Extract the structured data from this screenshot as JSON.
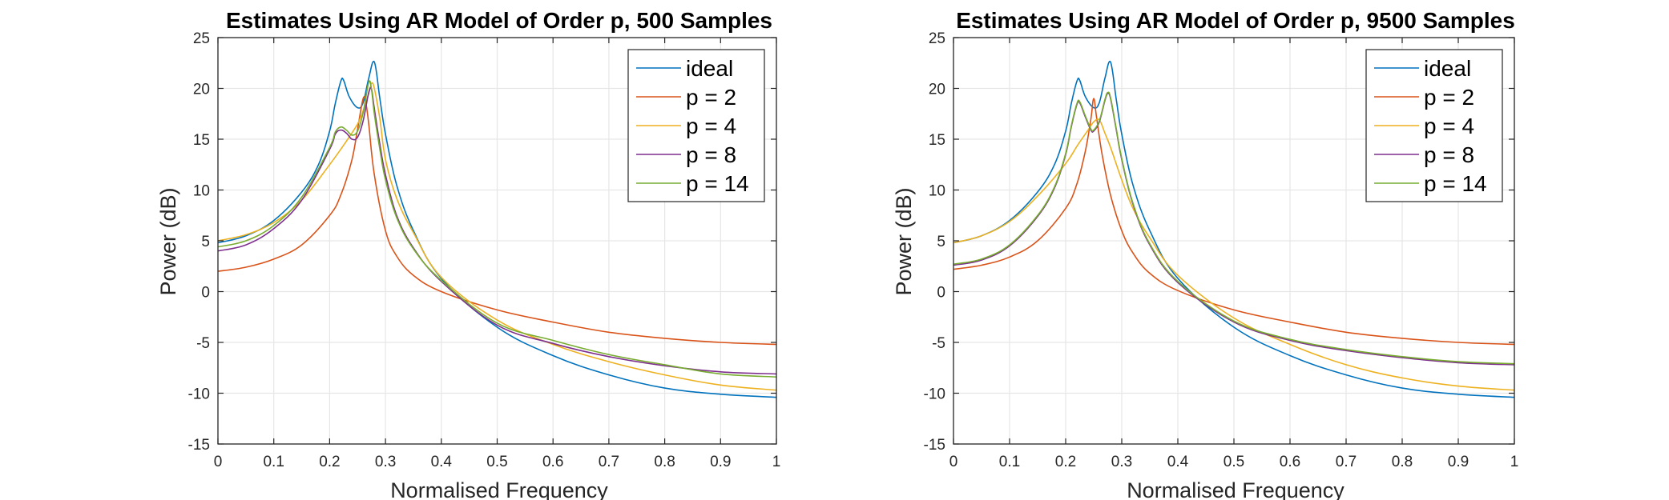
{
  "chart_data": [
    {
      "type": "line",
      "title": "Estimates Using AR Model of Order p, 500 Samples",
      "xlabel": "Normalised Frequency",
      "ylabel": "Power (dB)",
      "xlim": [
        0,
        1
      ],
      "ylim": [
        -15,
        25
      ],
      "xticks": [
        0,
        0.1,
        0.2,
        0.3,
        0.4,
        0.5,
        0.6,
        0.7,
        0.8,
        0.9,
        1
      ],
      "yticks": [
        -15,
        -10,
        -5,
        0,
        5,
        10,
        15,
        20,
        25
      ],
      "xtick_labels": [
        "0",
        "0.1",
        "0.2",
        "0.3",
        "0.4",
        "0.5",
        "0.6",
        "0.7",
        "0.8",
        "0.9",
        "1"
      ],
      "ytick_labels": [
        "-15",
        "-10",
        "-5",
        "0",
        "5",
        "10",
        "15",
        "20",
        "25"
      ],
      "grid": true,
      "legend_position": "top-right",
      "series": [
        {
          "name": "ideal",
          "color": "#0072BD",
          "x": [
            0,
            0.05,
            0.1,
            0.15,
            0.18,
            0.2,
            0.21,
            0.22,
            0.225,
            0.235,
            0.25,
            0.26,
            0.27,
            0.28,
            0.29,
            0.3,
            0.32,
            0.35,
            0.4,
            0.5,
            0.6,
            0.7,
            0.8,
            0.9,
            1
          ],
          "y": [
            4.8,
            5.5,
            7,
            9.8,
            12.5,
            15.8,
            18.5,
            20.7,
            20.8,
            19.2,
            18.1,
            18.6,
            21,
            22.6,
            19,
            15.5,
            10.5,
            6,
            1.3,
            -3.5,
            -6.3,
            -8.2,
            -9.5,
            -10.1,
            -10.4
          ]
        },
        {
          "name": "p = 2",
          "color": "#D95319",
          "x": [
            0,
            0.05,
            0.1,
            0.15,
            0.2,
            0.22,
            0.24,
            0.25,
            0.26,
            0.265,
            0.27,
            0.28,
            0.3,
            0.32,
            0.35,
            0.4,
            0.5,
            0.6,
            0.7,
            0.8,
            0.9,
            1
          ],
          "y": [
            2,
            2.4,
            3.2,
            4.6,
            7.5,
            9.5,
            13,
            16,
            19,
            18.5,
            16.5,
            11.5,
            6,
            3.5,
            1.6,
            0,
            -1.8,
            -3,
            -4,
            -4.6,
            -5,
            -5.2
          ]
        },
        {
          "name": "p = 4",
          "color": "#EDB120",
          "x": [
            0,
            0.05,
            0.1,
            0.15,
            0.2,
            0.23,
            0.25,
            0.26,
            0.27,
            0.275,
            0.28,
            0.29,
            0.3,
            0.32,
            0.35,
            0.4,
            0.5,
            0.6,
            0.7,
            0.8,
            0.9,
            1
          ],
          "y": [
            5,
            5.6,
            6.8,
            9,
            12.5,
            14.8,
            16.5,
            17.8,
            19.5,
            20.5,
            20,
            17,
            13,
            9.2,
            5.8,
            1.4,
            -2.8,
            -5.2,
            -6.9,
            -8.2,
            -9.2,
            -9.7
          ]
        },
        {
          "name": "p = 8",
          "color": "#7E2F8E",
          "x": [
            0,
            0.05,
            0.1,
            0.15,
            0.2,
            0.21,
            0.22,
            0.23,
            0.24,
            0.25,
            0.26,
            0.27,
            0.275,
            0.28,
            0.29,
            0.3,
            0.32,
            0.35,
            0.4,
            0.5,
            0.6,
            0.7,
            0.8,
            0.9,
            1
          ],
          "y": [
            4,
            4.6,
            6.2,
            9,
            14,
            15.5,
            15.9,
            15.6,
            15,
            15.2,
            16.8,
            19.6,
            19.9,
            18,
            14.5,
            11.5,
            7.5,
            4.3,
            1,
            -3.3,
            -5.1,
            -6.4,
            -7.3,
            -7.9,
            -8.1
          ]
        },
        {
          "name": "p = 14",
          "color": "#77AC30",
          "x": [
            0,
            0.05,
            0.1,
            0.15,
            0.2,
            0.21,
            0.22,
            0.23,
            0.24,
            0.25,
            0.26,
            0.27,
            0.275,
            0.28,
            0.29,
            0.3,
            0.32,
            0.35,
            0.4,
            0.5,
            0.6,
            0.7,
            0.8,
            0.9,
            1
          ],
          "y": [
            4.4,
            5,
            6.5,
            9.3,
            14.2,
            15.7,
            16.2,
            15.9,
            15.4,
            15.8,
            17.6,
            20.6,
            19.9,
            17.5,
            14,
            11,
            7.3,
            4.2,
            1.1,
            -3.1,
            -4.8,
            -6.2,
            -7.2,
            -8.1,
            -8.4
          ]
        }
      ]
    },
    {
      "type": "line",
      "title": "Estimates Using AR Model of Order p, 9500 Samples",
      "xlabel": "Normalised Frequency",
      "ylabel": "Power (dB)",
      "xlim": [
        0,
        1
      ],
      "ylim": [
        -15,
        25
      ],
      "xticks": [
        0,
        0.1,
        0.2,
        0.3,
        0.4,
        0.5,
        0.6,
        0.7,
        0.8,
        0.9,
        1
      ],
      "yticks": [
        -15,
        -10,
        -5,
        0,
        5,
        10,
        15,
        20,
        25
      ],
      "xtick_labels": [
        "0",
        "0.1",
        "0.2",
        "0.3",
        "0.4",
        "0.5",
        "0.6",
        "0.7",
        "0.8",
        "0.9",
        "1"
      ],
      "ytick_labels": [
        "-15",
        "-10",
        "-5",
        "0",
        "5",
        "10",
        "15",
        "20",
        "25"
      ],
      "grid": true,
      "legend_position": "top-right",
      "series": [
        {
          "name": "ideal",
          "color": "#0072BD",
          "x": [
            0,
            0.05,
            0.1,
            0.15,
            0.18,
            0.2,
            0.21,
            0.22,
            0.225,
            0.235,
            0.25,
            0.26,
            0.27,
            0.28,
            0.29,
            0.3,
            0.32,
            0.35,
            0.4,
            0.5,
            0.6,
            0.7,
            0.8,
            0.9,
            1
          ],
          "y": [
            4.8,
            5.5,
            7,
            9.8,
            12.5,
            15.8,
            18.5,
            20.7,
            20.8,
            19.2,
            18.1,
            18.6,
            21,
            22.6,
            19,
            15.5,
            10.5,
            6,
            1.3,
            -3.5,
            -6.3,
            -8.2,
            -9.5,
            -10.1,
            -10.4
          ]
        },
        {
          "name": "p = 2",
          "color": "#D95319",
          "x": [
            0,
            0.05,
            0.1,
            0.15,
            0.2,
            0.22,
            0.235,
            0.245,
            0.25,
            0.255,
            0.265,
            0.28,
            0.3,
            0.32,
            0.35,
            0.4,
            0.5,
            0.6,
            0.7,
            0.8,
            0.9,
            1
          ],
          "y": [
            2.2,
            2.6,
            3.4,
            5,
            8.2,
            10.6,
            13.8,
            17,
            19,
            17.2,
            13.5,
            9.5,
            6,
            3.8,
            1.8,
            0.1,
            -1.8,
            -3,
            -4,
            -4.6,
            -5,
            -5.2
          ]
        },
        {
          "name": "p = 4",
          "color": "#EDB120",
          "x": [
            0,
            0.05,
            0.1,
            0.15,
            0.2,
            0.22,
            0.24,
            0.25,
            0.26,
            0.27,
            0.28,
            0.3,
            0.32,
            0.35,
            0.4,
            0.5,
            0.6,
            0.7,
            0.8,
            0.9,
            1
          ],
          "y": [
            4.8,
            5.5,
            6.9,
            9.4,
            12.6,
            14.3,
            15.9,
            16.7,
            16.9,
            15.6,
            14.2,
            11,
            8.2,
            5.3,
            1.6,
            -2.6,
            -5.2,
            -7.2,
            -8.5,
            -9.3,
            -9.7
          ]
        },
        {
          "name": "p = 8",
          "color": "#7E2F8E",
          "x": [
            0,
            0.05,
            0.1,
            0.15,
            0.18,
            0.2,
            0.21,
            0.22,
            0.225,
            0.235,
            0.245,
            0.25,
            0.26,
            0.27,
            0.275,
            0.28,
            0.29,
            0.3,
            0.32,
            0.35,
            0.4,
            0.5,
            0.6,
            0.7,
            0.8,
            0.9,
            1
          ],
          "y": [
            2.6,
            3.1,
            4.5,
            7.4,
            10.2,
            13.5,
            16.2,
            18.4,
            18.6,
            17.2,
            15.9,
            15.8,
            16.7,
            18.8,
            19.5,
            19,
            16,
            13,
            8.6,
            4.6,
            0.9,
            -3,
            -4.8,
            -5.8,
            -6.5,
            -7,
            -7.2
          ]
        },
        {
          "name": "p = 14",
          "color": "#77AC30",
          "x": [
            0,
            0.05,
            0.1,
            0.15,
            0.18,
            0.2,
            0.21,
            0.22,
            0.225,
            0.235,
            0.245,
            0.25,
            0.26,
            0.27,
            0.275,
            0.28,
            0.29,
            0.3,
            0.32,
            0.35,
            0.4,
            0.5,
            0.6,
            0.7,
            0.8,
            0.9,
            1
          ],
          "y": [
            2.7,
            3.2,
            4.6,
            7.5,
            10.3,
            13.6,
            16.3,
            18.5,
            18.7,
            17.3,
            16,
            15.9,
            16.8,
            18.9,
            19.6,
            19.1,
            16.1,
            13.1,
            8.7,
            4.7,
            1,
            -2.9,
            -4.7,
            -5.7,
            -6.4,
            -6.9,
            -7.1
          ]
        }
      ]
    }
  ]
}
